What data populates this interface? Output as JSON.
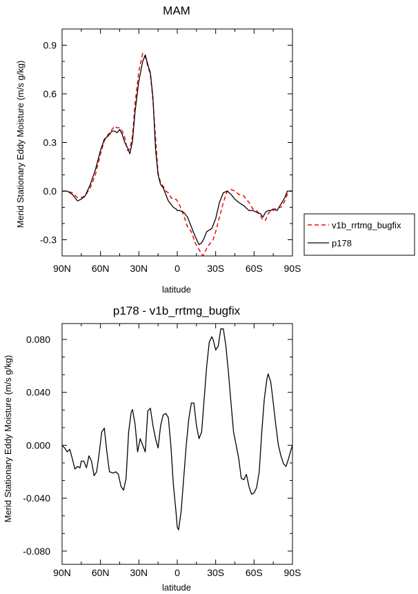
{
  "chart_data": [
    {
      "type": "line",
      "title": "MAM",
      "xlabel": "latitude",
      "ylabel": "Merid Stationary Eddy Moisture (m/s g/kg)",
      "xlim": [
        90,
        -90
      ],
      "ylim": [
        -0.4,
        1.0
      ],
      "xticks": [
        90,
        60,
        30,
        0,
        -30,
        -60,
        -90
      ],
      "xtick_labels": [
        "90N",
        "60N",
        "30N",
        "0",
        "30S",
        "60S",
        "90S"
      ],
      "yticks": [
        -0.3,
        0.0,
        0.3,
        0.6,
        0.9
      ],
      "ytick_labels": [
        "-0.3",
        "0.0",
        "0.3",
        "0.6",
        "0.9"
      ],
      "legend_position": "right",
      "series": [
        {
          "name": "v1b_rrtmg_bugfix",
          "color": "#ff0000",
          "dash": "dashed",
          "x": [
            90,
            86,
            82,
            78,
            75,
            72,
            68,
            64,
            60,
            57,
            54,
            51,
            49,
            47,
            45,
            43,
            41,
            39,
            37,
            35,
            33,
            30,
            27,
            25,
            23,
            21,
            19,
            17,
            15,
            13,
            11,
            9,
            7,
            5,
            3,
            1,
            0,
            -2,
            -5,
            -8,
            -11,
            -14,
            -17,
            -20,
            -22,
            -24,
            -26,
            -28,
            -30,
            -33,
            -36,
            -39,
            -42,
            -45,
            -48,
            -52,
            -56,
            -59,
            -62,
            -65,
            -67,
            -69,
            -71,
            -73,
            -75,
            -78,
            -81,
            -84,
            -86,
            -88,
            -90
          ],
          "y": [
            0.0,
            0.0,
            -0.01,
            -0.04,
            -0.04,
            -0.03,
            0.02,
            0.1,
            0.23,
            0.31,
            0.35,
            0.38,
            0.4,
            0.39,
            0.39,
            0.37,
            0.33,
            0.25,
            0.26,
            0.34,
            0.54,
            0.74,
            0.85,
            0.83,
            0.77,
            0.72,
            0.56,
            0.33,
            0.11,
            0.05,
            0.03,
            0.0,
            -0.01,
            -0.04,
            -0.05,
            -0.05,
            -0.06,
            -0.09,
            -0.15,
            -0.22,
            -0.25,
            -0.32,
            -0.36,
            -0.4,
            -0.37,
            -0.34,
            -0.32,
            -0.3,
            -0.25,
            -0.16,
            -0.07,
            0.0,
            0.01,
            0.0,
            -0.02,
            -0.03,
            -0.07,
            -0.11,
            -0.12,
            -0.15,
            -0.18,
            -0.18,
            -0.14,
            -0.12,
            -0.12,
            -0.1,
            -0.1,
            -0.06,
            -0.02,
            0.0,
            0.0
          ]
        },
        {
          "name": "p178",
          "color": "#000000",
          "dash": "solid",
          "x": [
            90,
            86,
            82,
            80,
            78,
            75,
            72,
            68,
            64,
            60,
            57,
            54,
            51,
            49,
            47,
            45,
            43,
            41,
            39,
            37,
            35,
            33,
            30,
            27,
            25,
            23,
            21,
            19,
            17,
            15,
            13,
            11,
            9,
            7,
            5,
            3,
            1,
            0,
            -2,
            -5,
            -8,
            -11,
            -14,
            -17,
            -19,
            -21,
            -23,
            -25,
            -27,
            -30,
            -33,
            -36,
            -39,
            -42,
            -45,
            -48,
            -52,
            -56,
            -59,
            -62,
            -65,
            -67,
            -69,
            -71,
            -73,
            -75,
            -78,
            -81,
            -84,
            -86,
            -88,
            -90
          ],
          "y": [
            0.0,
            0.0,
            -0.02,
            -0.04,
            -0.06,
            -0.05,
            -0.03,
            0.04,
            0.13,
            0.25,
            0.32,
            0.34,
            0.37,
            0.37,
            0.36,
            0.38,
            0.35,
            0.3,
            0.27,
            0.23,
            0.31,
            0.49,
            0.68,
            0.8,
            0.84,
            0.78,
            0.73,
            0.58,
            0.26,
            0.1,
            0.04,
            0.02,
            -0.02,
            -0.06,
            -0.08,
            -0.1,
            -0.11,
            -0.12,
            -0.12,
            -0.13,
            -0.16,
            -0.22,
            -0.28,
            -0.33,
            -0.32,
            -0.29,
            -0.25,
            -0.24,
            -0.23,
            -0.17,
            -0.07,
            -0.01,
            0.0,
            -0.02,
            -0.05,
            -0.07,
            -0.09,
            -0.12,
            -0.12,
            -0.13,
            -0.14,
            -0.16,
            -0.13,
            -0.12,
            -0.12,
            -0.11,
            -0.12,
            -0.08,
            -0.04,
            0.0,
            0.0,
            0.0
          ]
        }
      ]
    },
    {
      "type": "line",
      "title": "p178 - v1b_rrtmg_bugfix",
      "xlabel": "latitude",
      "ylabel": "Merid Stationary Eddy Moisture (m/s g/kg)",
      "xlim": [
        90,
        -90
      ],
      "ylim": [
        -0.09,
        0.092
      ],
      "xticks": [
        90,
        60,
        30,
        0,
        -30,
        -60,
        -90
      ],
      "xtick_labels": [
        "90N",
        "60N",
        "30N",
        "0",
        "30S",
        "60S",
        "90S"
      ],
      "yticks": [
        -0.08,
        -0.04,
        0.0,
        0.04,
        0.08
      ],
      "ytick_labels": [
        "-0.080",
        "-0.040",
        "0.000",
        "0.040",
        "0.080"
      ],
      "series": [
        {
          "name": "p178 - v1b_rrtmg_bugfix",
          "color": "#000000",
          "dash": "solid",
          "x": [
            90,
            88,
            86,
            84,
            82,
            80,
            78,
            76,
            75,
            73,
            71,
            69,
            67,
            65,
            63,
            61,
            59,
            57,
            55,
            53,
            50,
            48,
            46,
            44,
            42,
            40,
            38,
            36,
            35,
            33,
            31,
            29,
            27,
            25,
            23,
            21,
            19,
            17,
            15,
            13,
            11,
            9,
            7,
            5,
            3,
            1,
            0,
            -1,
            -3,
            -5,
            -7,
            -9,
            -11,
            -13,
            -15,
            -17,
            -19,
            -21,
            -23,
            -25,
            -27,
            -28,
            -30,
            -32,
            -34,
            -36,
            -38,
            -40,
            -42,
            -44,
            -46,
            -48,
            -50,
            -52,
            -54,
            -56,
            -58,
            -60,
            -62,
            -64,
            -66,
            -68,
            -70,
            -71,
            -73,
            -75,
            -77,
            -79,
            -81,
            -83,
            -85,
            -87,
            -89,
            -90
          ],
          "y": [
            0.0,
            -0.002,
            -0.005,
            -0.003,
            -0.01,
            -0.018,
            -0.016,
            -0.017,
            -0.012,
            -0.012,
            -0.017,
            -0.008,
            -0.012,
            -0.023,
            -0.02,
            -0.006,
            0.01,
            0.013,
            -0.005,
            -0.02,
            -0.021,
            -0.02,
            -0.022,
            -0.031,
            -0.034,
            -0.025,
            0.01,
            0.025,
            0.027,
            0.016,
            -0.005,
            0.005,
            0.0,
            -0.005,
            0.026,
            0.028,
            0.015,
            0.005,
            -0.002,
            0.015,
            0.023,
            0.024,
            0.021,
            0.0,
            -0.03,
            -0.05,
            -0.062,
            -0.064,
            -0.05,
            -0.025,
            0.0,
            0.02,
            0.032,
            0.032,
            0.015,
            0.005,
            0.01,
            0.035,
            0.06,
            0.078,
            0.082,
            0.08,
            0.072,
            0.075,
            0.088,
            0.088,
            0.075,
            0.055,
            0.032,
            0.01,
            0.0,
            -0.01,
            -0.025,
            -0.026,
            -0.022,
            -0.031,
            -0.037,
            -0.036,
            -0.032,
            -0.02,
            0.01,
            0.035,
            0.05,
            0.054,
            0.048,
            0.032,
            0.015,
            0.0,
            -0.008,
            -0.014,
            -0.016,
            -0.01,
            -0.003,
            0.0
          ]
        }
      ]
    }
  ]
}
